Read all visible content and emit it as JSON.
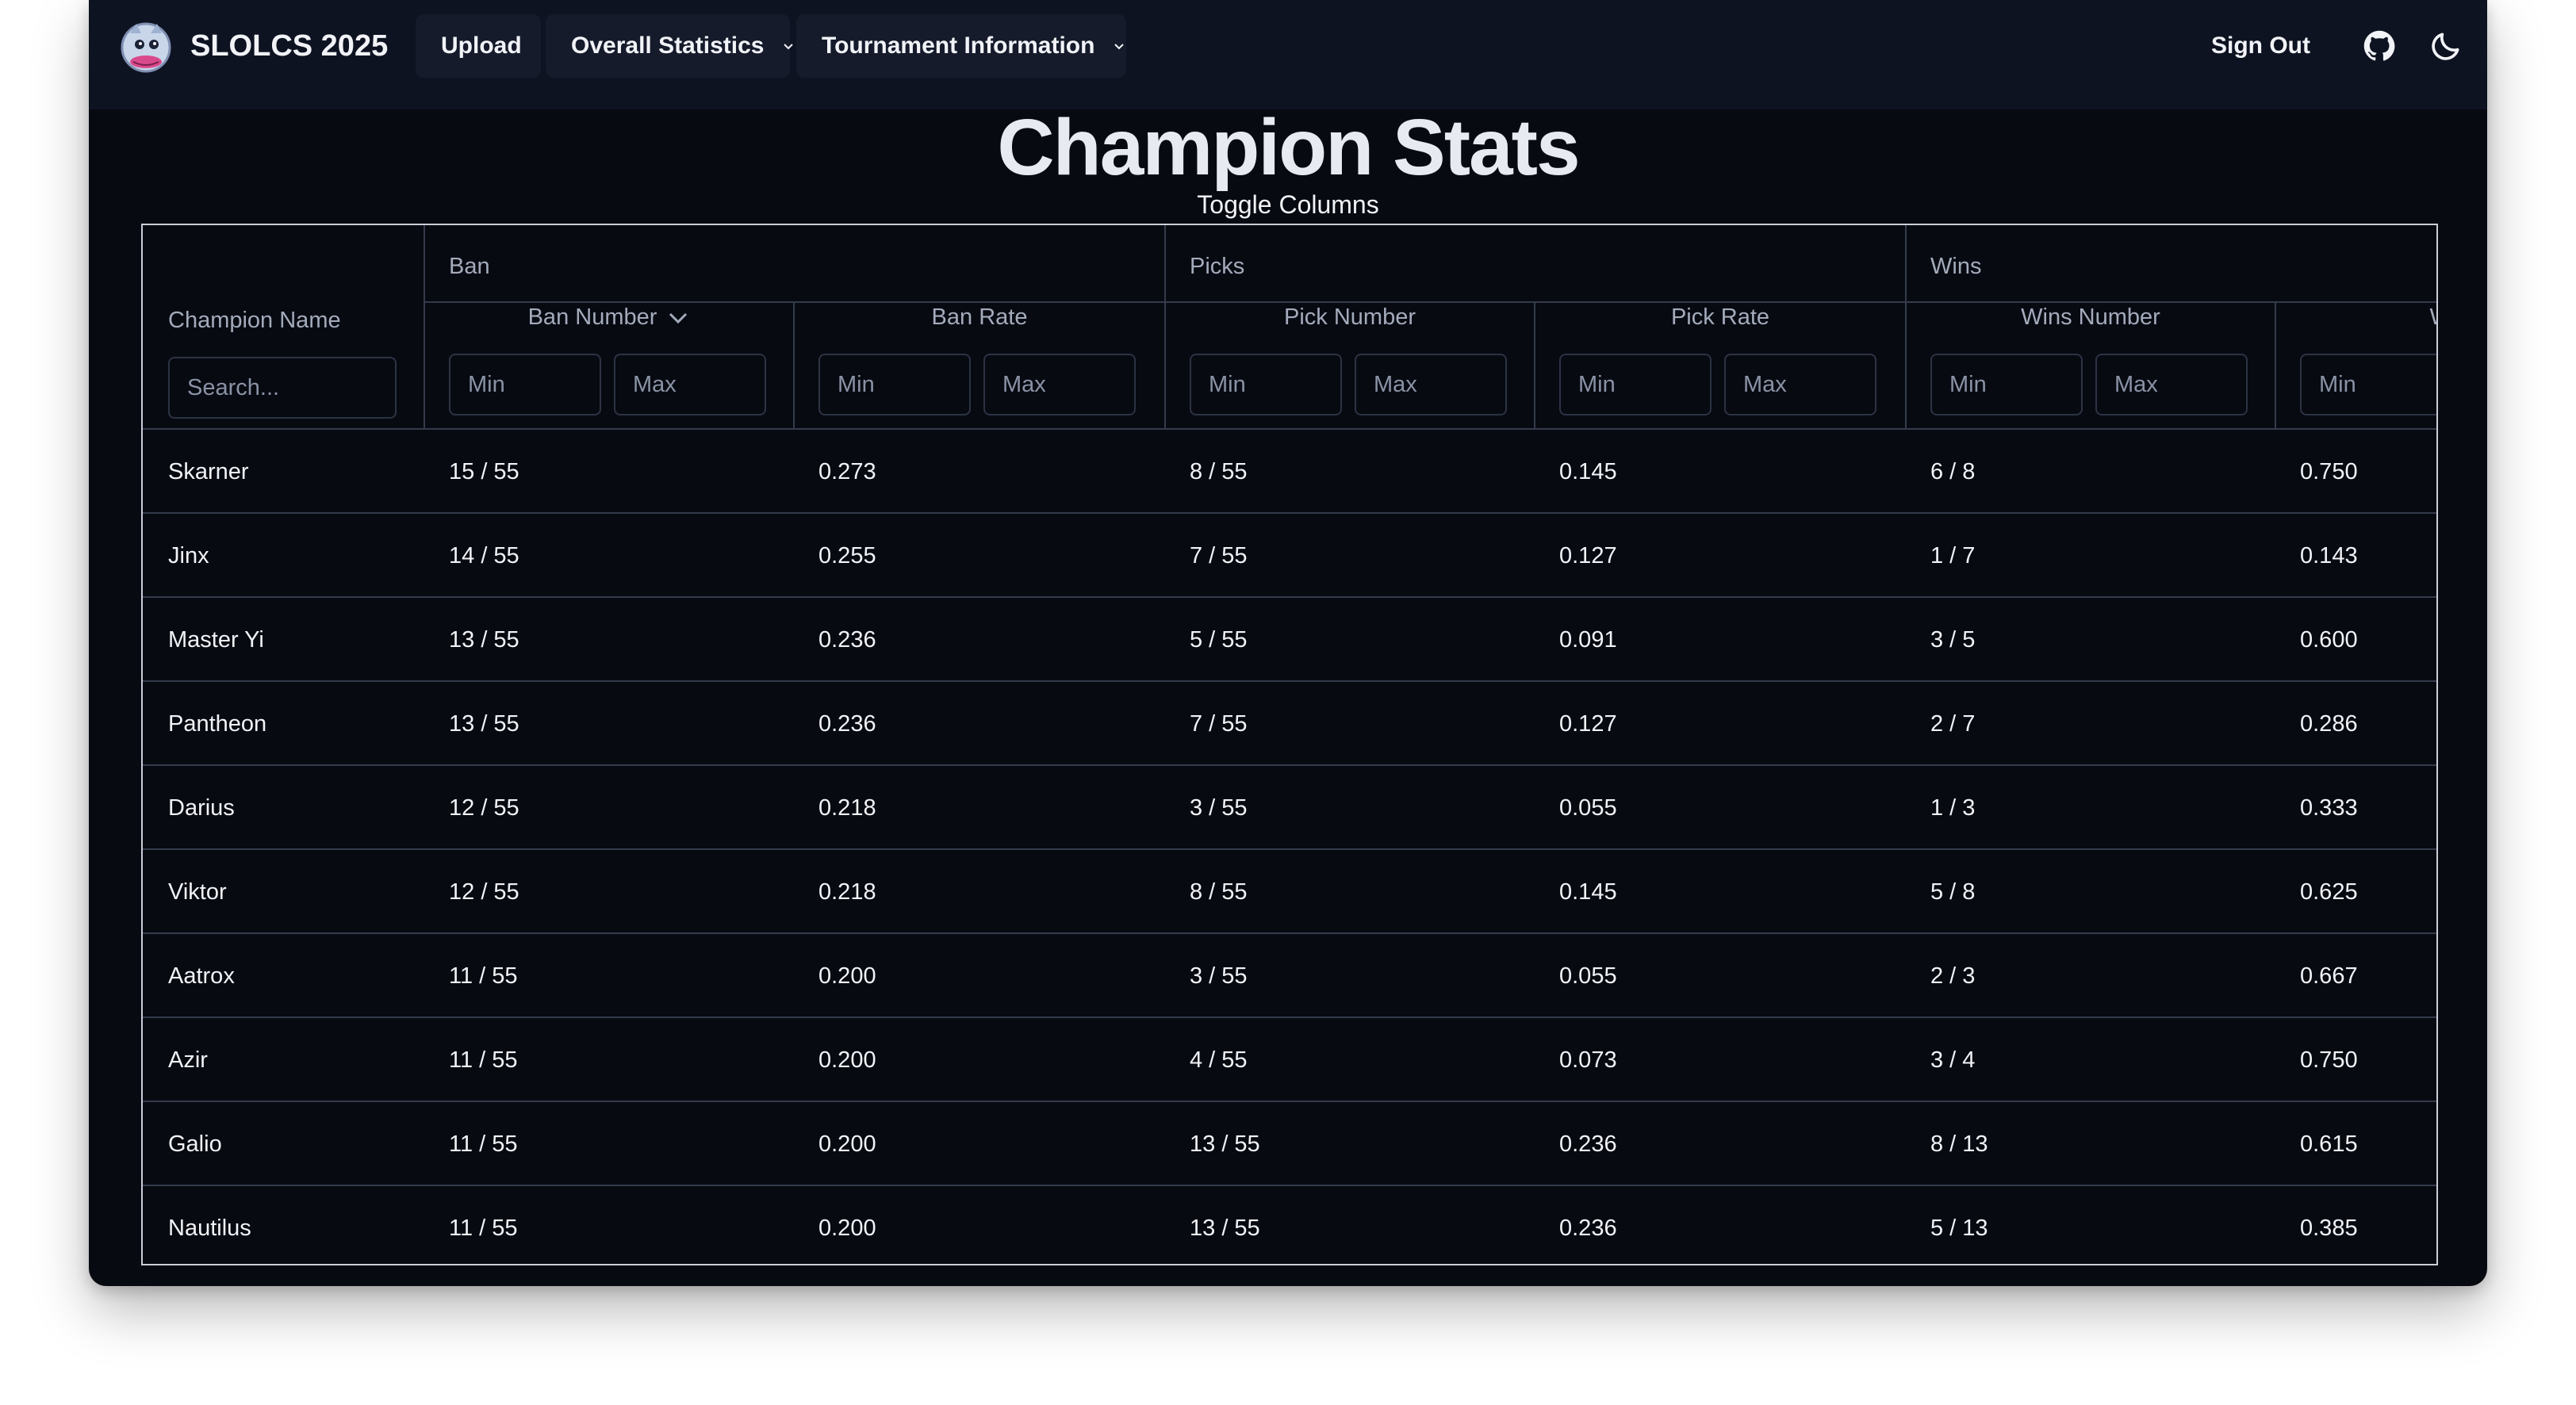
{
  "navbar": {
    "brand": "SLOLCS 2025",
    "upload_label": "Upload",
    "overall_label": "Overall Statistics",
    "tournament_label": "Tournament Information",
    "signout_label": "Sign Out",
    "icons": [
      "logo-icon",
      "github-icon",
      "moon-icon",
      "chevron-down-icon"
    ]
  },
  "page": {
    "title": "Champion Stats",
    "toggle_columns": "Toggle Columns"
  },
  "table": {
    "groups": [
      "Ban",
      "Picks",
      "Wins"
    ],
    "columns": [
      "Champion Name",
      "Ban Number",
      "Ban Rate",
      "Pick Number",
      "Pick Rate",
      "Wins Number",
      "Win R"
    ],
    "search_placeholder": "Search...",
    "min_placeholder": "Min",
    "max_placeholder": "Max",
    "sorted_column": "Ban Number",
    "sort_direction": "descending",
    "rows": [
      {
        "name": "Skarner",
        "ban_number": "15 / 55",
        "ban_rate": "0.273",
        "pick_number": "8 / 55",
        "pick_rate": "0.145",
        "wins_number": "6 / 8",
        "win_rate": "0.750"
      },
      {
        "name": "Jinx",
        "ban_number": "14 / 55",
        "ban_rate": "0.255",
        "pick_number": "7 / 55",
        "pick_rate": "0.127",
        "wins_number": "1 / 7",
        "win_rate": "0.143"
      },
      {
        "name": "Master Yi",
        "ban_number": "13 / 55",
        "ban_rate": "0.236",
        "pick_number": "5 / 55",
        "pick_rate": "0.091",
        "wins_number": "3 / 5",
        "win_rate": "0.600"
      },
      {
        "name": "Pantheon",
        "ban_number": "13 / 55",
        "ban_rate": "0.236",
        "pick_number": "7 / 55",
        "pick_rate": "0.127",
        "wins_number": "2 / 7",
        "win_rate": "0.286"
      },
      {
        "name": "Darius",
        "ban_number": "12 / 55",
        "ban_rate": "0.218",
        "pick_number": "3 / 55",
        "pick_rate": "0.055",
        "wins_number": "1 / 3",
        "win_rate": "0.333"
      },
      {
        "name": "Viktor",
        "ban_number": "12 / 55",
        "ban_rate": "0.218",
        "pick_number": "8 / 55",
        "pick_rate": "0.145",
        "wins_number": "5 / 8",
        "win_rate": "0.625"
      },
      {
        "name": "Aatrox",
        "ban_number": "11 / 55",
        "ban_rate": "0.200",
        "pick_number": "3 / 55",
        "pick_rate": "0.055",
        "wins_number": "2 / 3",
        "win_rate": "0.667"
      },
      {
        "name": "Azir",
        "ban_number": "11 / 55",
        "ban_rate": "0.200",
        "pick_number": "4 / 55",
        "pick_rate": "0.073",
        "wins_number": "3 / 4",
        "win_rate": "0.750"
      },
      {
        "name": "Galio",
        "ban_number": "11 / 55",
        "ban_rate": "0.200",
        "pick_number": "13 / 55",
        "pick_rate": "0.236",
        "wins_number": "8 / 13",
        "win_rate": "0.615"
      },
      {
        "name": "Nautilus",
        "ban_number": "11 / 55",
        "ban_rate": "0.200",
        "pick_number": "13 / 55",
        "pick_rate": "0.236",
        "wins_number": "5 / 13",
        "win_rate": "0.385"
      }
    ]
  },
  "colors": {
    "background": "#080a12",
    "navbar": "#0e1322",
    "nav_button": "#151b2b",
    "text": "#f1f3f7",
    "muted_text": "#a3abbb",
    "border": "#343b4b"
  }
}
